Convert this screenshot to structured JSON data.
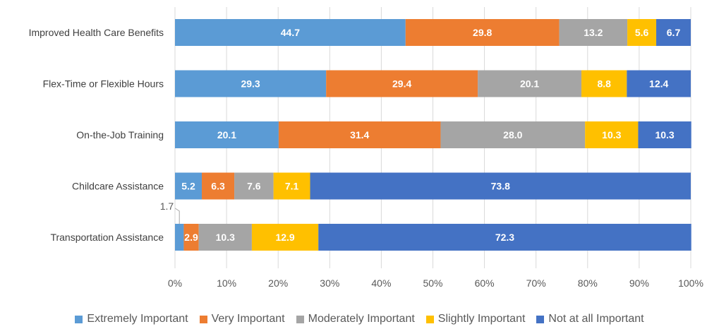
{
  "chart_data": {
    "type": "bar",
    "orientation": "horizontal",
    "stacked": "percent",
    "categories": [
      "Improved Health Care Benefits",
      "Flex-Time or Flexible Hours",
      "On-the-Job Training",
      "Childcare Assistance",
      "Transportation Assistance"
    ],
    "series": [
      {
        "name": "Extremely Important",
        "color": "#5B9BD5",
        "values": [
          44.7,
          29.3,
          20.1,
          5.2,
          1.7
        ]
      },
      {
        "name": "Very Important",
        "color": "#ED7D31",
        "values": [
          29.8,
          29.4,
          31.4,
          6.3,
          2.9
        ]
      },
      {
        "name": "Moderately Important",
        "color": "#A5A5A5",
        "values": [
          13.2,
          20.1,
          28.0,
          7.6,
          10.3
        ]
      },
      {
        "name": "Slightly Important",
        "color": "#FFC000",
        "values": [
          5.6,
          8.8,
          10.3,
          7.1,
          12.9
        ]
      },
      {
        "name": "Not at all Important",
        "color": "#4472C4",
        "values": [
          6.7,
          12.4,
          10.3,
          73.8,
          72.3
        ]
      }
    ],
    "data_labels": [
      [
        "44.7",
        "29.3",
        "20.1",
        "5.2",
        "1.7"
      ],
      [
        "29.8",
        "29.4",
        "31.4",
        "6.3",
        "2.9"
      ],
      [
        "13.2",
        "20.1",
        "28.0",
        "7.6",
        "10.3"
      ],
      [
        "5.6",
        "8.8",
        "10.3",
        "7.1",
        "12.9"
      ],
      [
        "6.7",
        "12.4",
        "10.3",
        "73.8",
        "72.3"
      ]
    ],
    "x_ticks": [
      "0%",
      "10%",
      "20%",
      "30%",
      "40%",
      "50%",
      "60%",
      "70%",
      "80%",
      "90%",
      "100%"
    ],
    "xlim": [
      0,
      100
    ],
    "grid": true,
    "legend_position": "bottom",
    "callout": {
      "series": 0,
      "category": 4,
      "text": "1.7"
    }
  }
}
